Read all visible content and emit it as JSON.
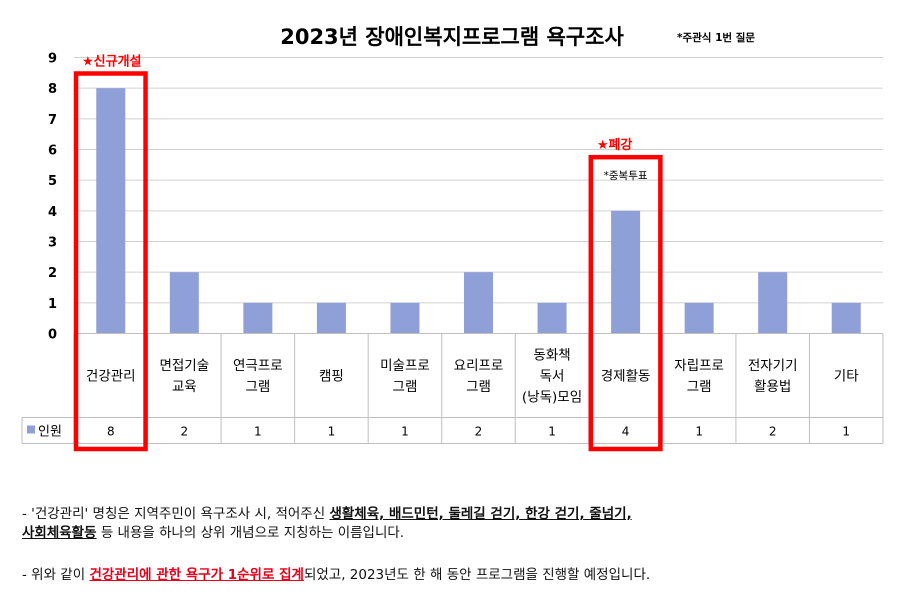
{
  "chart_data": {
    "type": "bar",
    "title": "2023년 장애인복지프로그램 욕구조사",
    "subtitle": "*주관식 1번 질문",
    "categories": [
      "건강관리",
      "면접기술 교육",
      "연극프로 그램",
      "캠핑",
      "미술프로 그램",
      "요리프로 그램",
      "동화책 독서 (낭독)모임",
      "경제활동",
      "자립프로 그램",
      "전자기기 활용법",
      "기타"
    ],
    "category_lines": [
      [
        "건강관리"
      ],
      [
        "면접기술",
        "교육"
      ],
      [
        "연극프로",
        "그램"
      ],
      [
        "캠핑"
      ],
      [
        "미술프로",
        "그램"
      ],
      [
        "요리프로",
        "그램"
      ],
      [
        "동화책",
        "독서",
        "(낭독)모임"
      ],
      [
        "경제활동"
      ],
      [
        "자립프로",
        "그램"
      ],
      [
        "전자기기",
        "활용법"
      ],
      [
        "기타"
      ]
    ],
    "series": [
      {
        "name": "인원",
        "values": [
          8,
          2,
          1,
          1,
          1,
          2,
          1,
          4,
          1,
          2,
          1
        ]
      }
    ],
    "ylim": [
      0,
      9
    ],
    "yticks": [
      0,
      1,
      2,
      3,
      4,
      5,
      6,
      7,
      8,
      9
    ],
    "grid": true,
    "bar_color": "#8f9fd8",
    "highlight_color": "#ff0000",
    "annotations": [
      {
        "category_index": 0,
        "text": "★신규개설"
      },
      {
        "category_index": 7,
        "text": "★폐강",
        "note": "*중복투표"
      }
    ]
  },
  "notes": [
    [
      {
        "text": "- '건강관리' 명칭은 지역주민이 욕구조사 시, 적어주신 "
      },
      {
        "text": "생활체육, 배드민턴, 둘레길 걷기, 한강 걷기, 줄넘기,",
        "style": "bu"
      }
    ],
    [
      {
        "text": "사회체육활동",
        "style": "bu"
      },
      {
        "text": " 등 내용을 하나의 상위 개념으로 지칭하는 이름입니다."
      }
    ],
    [
      {
        "text": "- 위와 같이 "
      },
      {
        "text": "건강관리에 관한 욕구가 1순위로 집계",
        "style": "bur"
      },
      {
        "text": "되었고, 2023년도 한 해 동안 프로그램을 진행할 예정입니다."
      }
    ]
  ]
}
